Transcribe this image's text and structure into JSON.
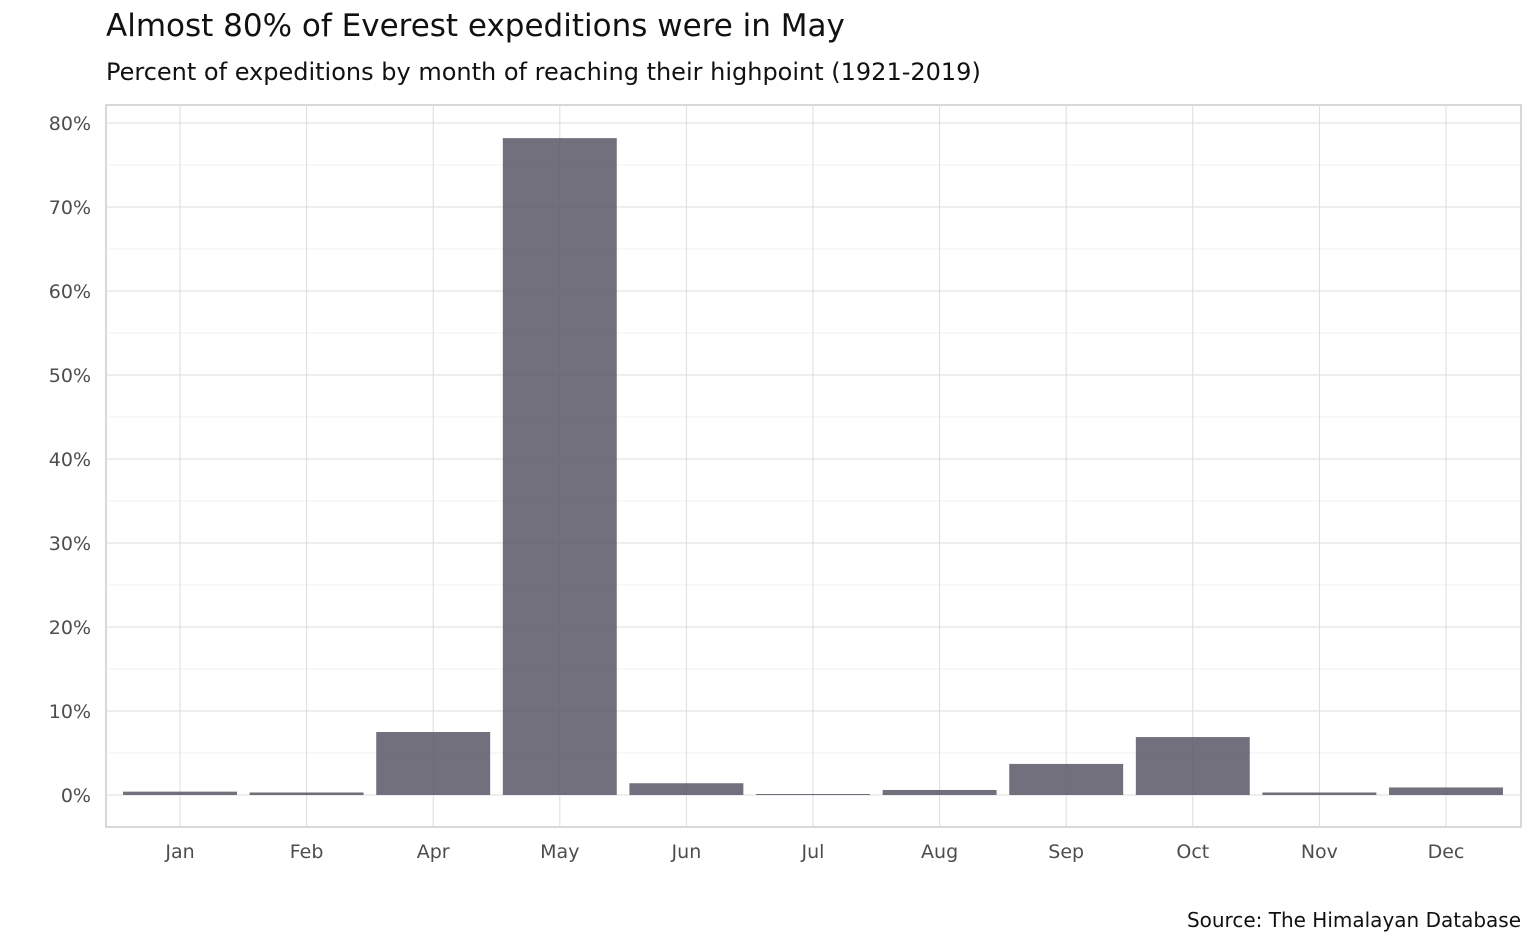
{
  "chart_data": {
    "type": "bar",
    "title": "Almost 80% of Everest expeditions were in May",
    "subtitle": "Percent of expeditions by month of reaching their highpoint (1921-2019)",
    "caption": "Source: The Himalayan Database",
    "categories": [
      "Jan",
      "Feb",
      "Apr",
      "May",
      "Jun",
      "Jul",
      "Aug",
      "Sep",
      "Oct",
      "Nov",
      "Dec"
    ],
    "values": [
      0.4,
      0.3,
      7.5,
      78.2,
      1.4,
      0.1,
      0.6,
      3.7,
      6.9,
      0.3,
      0.9
    ],
    "y_unit": "%",
    "ylim": [
      -4,
      82
    ],
    "yticks": [
      0,
      10,
      20,
      30,
      40,
      50,
      60,
      70,
      80
    ],
    "ytick_labels": [
      "0%",
      "10%",
      "20%",
      "30%",
      "40%",
      "50%",
      "60%",
      "70%",
      "80%"
    ],
    "xlabel": "",
    "ylabel": "",
    "grid": true,
    "legend": "none",
    "bar_color": "#5b5766",
    "bar_opacity": 0.85
  }
}
